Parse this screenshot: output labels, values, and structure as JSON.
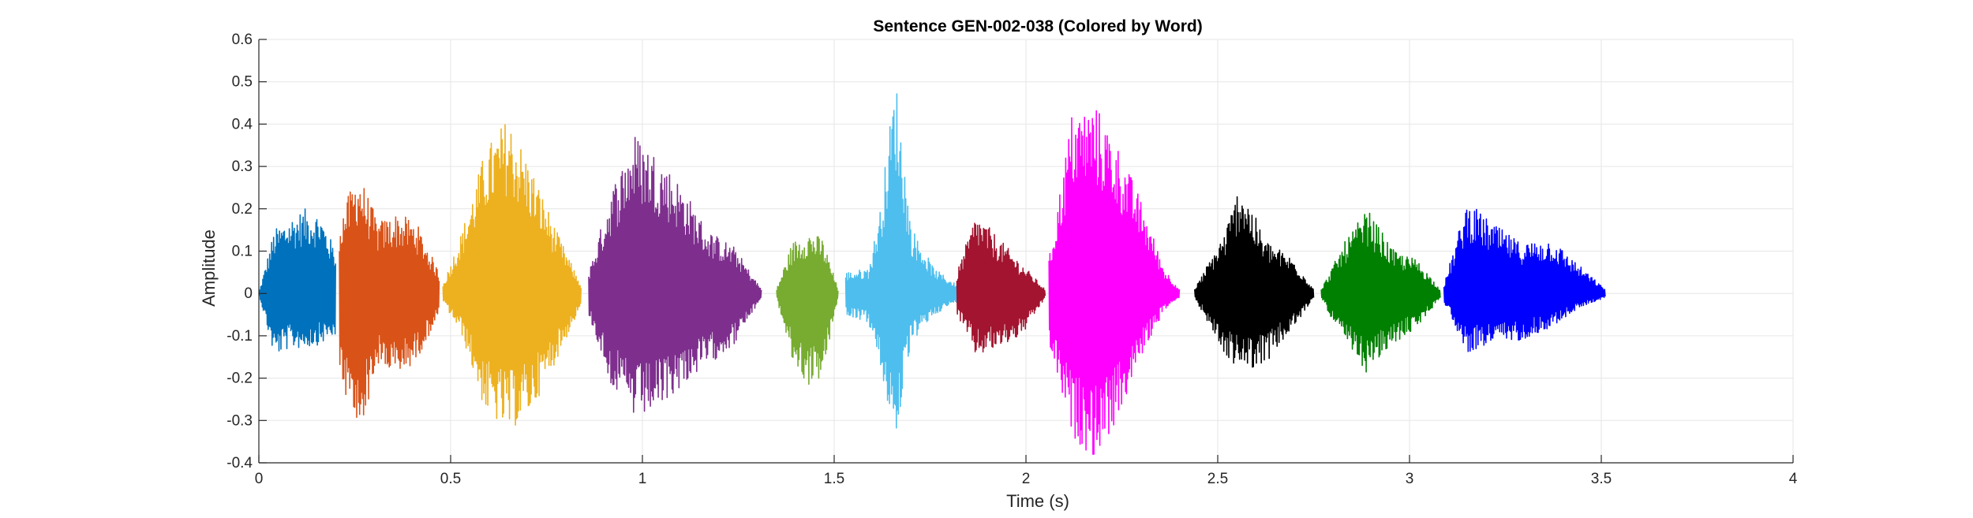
{
  "chart_data": {
    "type": "line",
    "title": "Sentence GEN-002-038 (Colored by Word)",
    "xlabel": "Time (s)",
    "ylabel": "Amplitude",
    "xlim": [
      0,
      4
    ],
    "ylim": [
      -0.4,
      0.6
    ],
    "xticks": [
      0,
      0.5,
      1,
      1.5,
      2,
      2.5,
      3,
      3.5,
      4
    ],
    "yticks": [
      -0.4,
      -0.3,
      -0.2,
      -0.1,
      0,
      0.1,
      0.2,
      0.3,
      0.4,
      0.5,
      0.6
    ],
    "grid": true,
    "series": [
      {
        "color": "#0072BD",
        "x": [
          0.0,
          0.04,
          0.08,
          0.12,
          0.16,
          0.2
        ],
        "upper": [
          0.0,
          0.15,
          0.18,
          0.2,
          0.19,
          0.1
        ],
        "lower": [
          0.0,
          -0.15,
          -0.13,
          -0.13,
          -0.12,
          -0.1
        ]
      },
      {
        "color": "#D95319",
        "x": [
          0.21,
          0.26,
          0.31,
          0.36,
          0.41,
          0.47
        ],
        "upper": [
          0.18,
          0.29,
          0.17,
          0.19,
          0.17,
          0.05
        ],
        "lower": [
          -0.2,
          -0.34,
          -0.17,
          -0.2,
          -0.16,
          -0.05
        ]
      },
      {
        "color": "#EDB120",
        "x": [
          0.48,
          0.53,
          0.59,
          0.65,
          0.71,
          0.78,
          0.84
        ],
        "upper": [
          0.02,
          0.15,
          0.34,
          0.42,
          0.3,
          0.14,
          0.02
        ],
        "lower": [
          -0.02,
          -0.1,
          -0.28,
          -0.33,
          -0.28,
          -0.15,
          -0.03
        ]
      },
      {
        "color": "#7E2F8E",
        "x": [
          0.86,
          0.92,
          0.98,
          1.04,
          1.1,
          1.17,
          1.24,
          1.31
        ],
        "upper": [
          0.05,
          0.25,
          0.38,
          0.33,
          0.26,
          0.15,
          0.11,
          0.01
        ],
        "lower": [
          -0.05,
          -0.22,
          -0.3,
          -0.28,
          -0.22,
          -0.17,
          -0.12,
          -0.01
        ]
      },
      {
        "color": "#77AC30",
        "x": [
          1.35,
          1.39,
          1.43,
          1.47,
          1.51
        ],
        "upper": [
          0.01,
          0.12,
          0.15,
          0.13,
          0.01
        ],
        "lower": [
          -0.01,
          -0.16,
          -0.22,
          -0.2,
          -0.01
        ]
      },
      {
        "color": "#4DBEEE",
        "x": [
          1.53,
          1.59,
          1.62,
          1.66,
          1.7,
          1.76,
          1.82
        ],
        "upper": [
          0.05,
          0.06,
          0.2,
          0.52,
          0.16,
          0.06,
          0.02
        ],
        "lower": [
          -0.05,
          -0.07,
          -0.18,
          -0.35,
          -0.12,
          -0.05,
          -0.02
        ]
      },
      {
        "color": "#A2142F",
        "x": [
          1.82,
          1.87,
          1.93,
          1.99,
          2.05
        ],
        "upper": [
          0.05,
          0.19,
          0.13,
          0.07,
          0.01
        ],
        "lower": [
          -0.05,
          -0.15,
          -0.13,
          -0.1,
          -0.01
        ]
      },
      {
        "color": "#FF00FF",
        "x": [
          2.06,
          2.12,
          2.18,
          2.24,
          2.3,
          2.36,
          2.4
        ],
        "upper": [
          0.08,
          0.43,
          0.45,
          0.35,
          0.22,
          0.06,
          0.01
        ],
        "lower": [
          -0.12,
          -0.34,
          -0.39,
          -0.3,
          -0.15,
          -0.04,
          -0.01
        ]
      },
      {
        "color": "#000000",
        "x": [
          2.44,
          2.52,
          2.56,
          2.62,
          2.7,
          2.75
        ],
        "upper": [
          0.01,
          0.15,
          0.27,
          0.13,
          0.08,
          0.01
        ],
        "lower": [
          -0.01,
          -0.15,
          -0.18,
          -0.17,
          -0.08,
          -0.01
        ]
      },
      {
        "color": "#008000",
        "x": [
          2.77,
          2.83,
          2.89,
          2.96,
          3.02,
          3.08
        ],
        "upper": [
          0.01,
          0.12,
          0.2,
          0.1,
          0.08,
          0.01
        ],
        "lower": [
          -0.01,
          -0.12,
          -0.19,
          -0.12,
          -0.08,
          -0.01
        ]
      },
      {
        "color": "#0000FF",
        "x": [
          3.09,
          3.15,
          3.21,
          3.29,
          3.37,
          3.45,
          3.51
        ],
        "upper": [
          0.02,
          0.22,
          0.17,
          0.12,
          0.13,
          0.06,
          0.01
        ],
        "lower": [
          -0.02,
          -0.14,
          -0.12,
          -0.11,
          -0.08,
          -0.03,
          -0.01
        ]
      }
    ]
  }
}
